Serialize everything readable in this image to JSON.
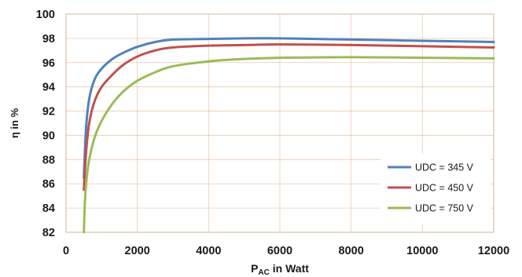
{
  "chart_data": {
    "type": "line",
    "xlabel": "P",
    "xlabel_sub": "AC",
    "xlabel_rest": " in Watt",
    "ylabel": "η in %",
    "xlim": [
      0,
      12000
    ],
    "ylim": [
      82,
      100
    ],
    "xticks": [
      0,
      2000,
      4000,
      6000,
      8000,
      10000,
      12000
    ],
    "yticks": [
      82,
      84,
      86,
      88,
      90,
      92,
      94,
      96,
      98,
      100
    ],
    "grid": true,
    "legend_position": "bottom-right",
    "series": [
      {
        "name": "UDC = 345 V",
        "color": "#4f81bd",
        "x": [
          500,
          560,
          650,
          800,
          1000,
          1300,
          1600,
          2000,
          2500,
          3000,
          4000,
          5000,
          6000,
          7000,
          8000,
          10000,
          12000
        ],
        "y": [
          86.5,
          90.5,
          93.0,
          94.6,
          95.5,
          96.3,
          96.8,
          97.3,
          97.7,
          97.9,
          97.95,
          98.0,
          98.0,
          97.95,
          97.9,
          97.8,
          97.7
        ]
      },
      {
        "name": "UDC = 450 V",
        "color": "#c0504d",
        "x": [
          500,
          560,
          650,
          800,
          1000,
          1300,
          1600,
          2000,
          2500,
          3000,
          4000,
          5000,
          6000,
          8000,
          10000,
          12000
        ],
        "y": [
          85.5,
          88.5,
          91.0,
          92.8,
          94.0,
          95.0,
          95.8,
          96.5,
          97.0,
          97.25,
          97.4,
          97.45,
          97.5,
          97.45,
          97.35,
          97.25
        ]
      },
      {
        "name": "UDC = 750 V",
        "color": "#9bbb59",
        "x": [
          500,
          530,
          580,
          650,
          800,
          1000,
          1300,
          1600,
          2000,
          2500,
          3000,
          4000,
          5000,
          6000,
          8000,
          10000,
          12000
        ],
        "y": [
          82.0,
          84.5,
          86.5,
          88.0,
          89.8,
          91.2,
          92.6,
          93.6,
          94.5,
          95.2,
          95.7,
          96.1,
          96.3,
          96.4,
          96.45,
          96.4,
          96.35
        ]
      }
    ]
  }
}
